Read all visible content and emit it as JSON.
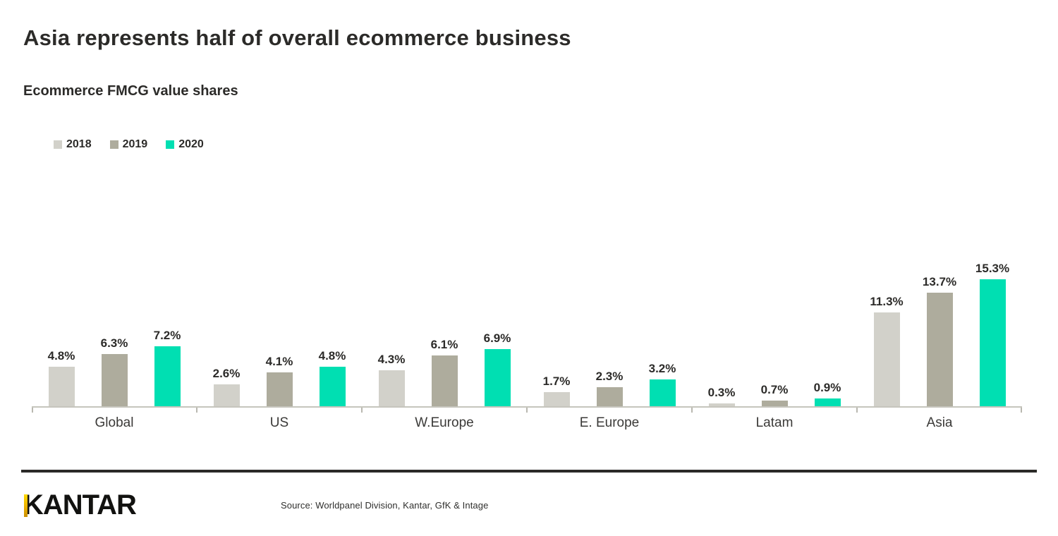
{
  "header": {
    "title": "Asia represents half of overall ecommerce business",
    "subtitle": "Ecommerce FMCG value shares"
  },
  "chart_data": {
    "type": "bar",
    "title": "Ecommerce FMCG value shares",
    "categories": [
      "Global",
      "US",
      "W.Europe",
      "E. Europe",
      "Latam",
      "Asia"
    ],
    "series": [
      {
        "name": "2018",
        "color": "#d2d1ca",
        "values": [
          4.8,
          2.6,
          4.3,
          1.7,
          0.3,
          11.3
        ]
      },
      {
        "name": "2019",
        "color": "#aeac9d",
        "values": [
          6.3,
          4.1,
          6.1,
          2.3,
          0.7,
          13.7
        ]
      },
      {
        "name": "2020",
        "color": "#00dfb2",
        "values": [
          7.2,
          4.8,
          6.9,
          3.2,
          0.9,
          15.3
        ]
      }
    ],
    "value_suffix": "%",
    "data_labels": true,
    "grid": false,
    "legend_position": "top-left",
    "xlabel": "",
    "ylabel": "",
    "ylim": [
      0,
      16
    ],
    "axis_color": "#c6c5bd"
  },
  "footer": {
    "logo_text": "KANTAR",
    "source": "Source: Worldpanel Division, Kantar, GfK & Intage"
  }
}
